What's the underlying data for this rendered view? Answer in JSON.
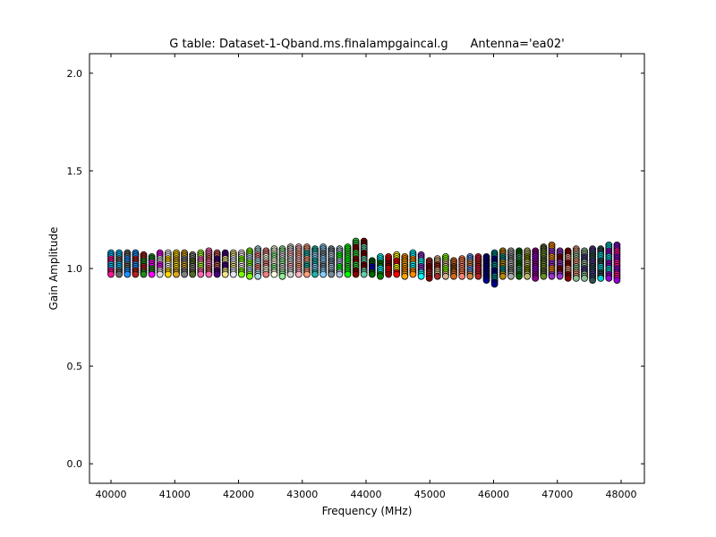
{
  "chart_data": {
    "type": "scatter",
    "title": "G table: Dataset-1-Qband.ms.finalampgaincal.g      Antenna='ea02'",
    "xlabel": "Frequency (MHz)",
    "ylabel": "Gain Amplitude",
    "xlim": [
      39663,
      48365
    ],
    "ylim": [
      -0.1,
      2.1
    ],
    "xticks": [
      "40000",
      "41000",
      "42000",
      "43000",
      "44000",
      "45000",
      "46000",
      "47000",
      "48000"
    ],
    "xtick_values": [
      40000,
      41000,
      42000,
      43000,
      44000,
      45000,
      46000,
      47000,
      48000
    ],
    "yticks": [
      "0.0",
      "0.5",
      "1.0",
      "1.5",
      "2.0"
    ],
    "ytick_values": [
      0.0,
      0.5,
      1.0,
      1.5,
      2.0
    ],
    "grid": false,
    "series_start_freq": 40000,
    "series_step_mhz": 128,
    "point_step": 0.01,
    "column_max": [
      1.08,
      1.08,
      1.08,
      1.08,
      1.07,
      1.06,
      1.08,
      1.08,
      1.08,
      1.08,
      1.07,
      1.08,
      1.09,
      1.08,
      1.08,
      1.08,
      1.08,
      1.09,
      1.1,
      1.09,
      1.1,
      1.1,
      1.11,
      1.11,
      1.11,
      1.1,
      1.11,
      1.1,
      1.1,
      1.11,
      1.14,
      1.14,
      1.04,
      1.06,
      1.06,
      1.07,
      1.06,
      1.08,
      1.07,
      1.04,
      1.05,
      1.06,
      1.04,
      1.05,
      1.06,
      1.06,
      1.06,
      1.08,
      1.09,
      1.09,
      1.09,
      1.09,
      1.09,
      1.11,
      1.12,
      1.09,
      1.09,
      1.1,
      1.09,
      1.1,
      1.1,
      1.12,
      1.12
    ],
    "column_min": [
      0.97,
      0.97,
      0.97,
      0.97,
      0.97,
      0.97,
      0.97,
      0.97,
      0.97,
      0.97,
      0.97,
      0.97,
      0.97,
      0.97,
      0.97,
      0.97,
      0.97,
      0.96,
      0.96,
      0.97,
      0.97,
      0.96,
      0.97,
      0.97,
      0.97,
      0.97,
      0.97,
      0.97,
      0.97,
      0.97,
      0.97,
      0.97,
      0.97,
      0.96,
      0.97,
      0.97,
      0.96,
      0.97,
      0.96,
      0.95,
      0.96,
      0.96,
      0.96,
      0.96,
      0.96,
      0.96,
      0.94,
      0.92,
      0.96,
      0.96,
      0.96,
      0.96,
      0.95,
      0.96,
      0.96,
      0.96,
      0.95,
      0.95,
      0.95,
      0.94,
      0.95,
      0.95,
      0.94
    ],
    "column_colors": [
      [
        "#00bfff",
        "#ff1493"
      ],
      [
        "#00bfff",
        "#696969"
      ],
      [
        "#696969",
        "#1e90ff"
      ],
      [
        "#1e90ff",
        "#b22222"
      ],
      [
        "#b22222",
        "#228b22"
      ],
      [
        "#228b22",
        "#ff00ff"
      ],
      [
        "#ff00ff",
        "#dcdcdc"
      ],
      [
        "#f8f8ff",
        "#ffd700"
      ],
      [
        "#ffd700",
        "#daa520"
      ],
      [
        "#daa520",
        "#808080"
      ],
      [
        "#808080",
        "#556b2f"
      ],
      [
        "#adff2f",
        "#ff69b4"
      ],
      [
        "#ff69b4",
        "#cd5c5c"
      ],
      [
        "#cd5c5c",
        "#4b0082"
      ],
      [
        "#4b0082",
        "#f0e68c"
      ],
      [
        "#f0e68c",
        "#e6e6fa"
      ],
      [
        "#fff0f5",
        "#7cfc00"
      ],
      [
        "#7cfc00",
        "#add8e6"
      ],
      [
        "#add8e6",
        "#f08080"
      ],
      [
        "#f08080",
        "#ffffe0"
      ],
      [
        "#ffffe0",
        "#90ee90"
      ],
      [
        "#90ee90",
        "#d3d3d3"
      ],
      [
        "#d3d3d3",
        "#ffb6c1"
      ],
      [
        "#ffb6c1",
        "#ffa07a"
      ],
      [
        "#ffa07a",
        "#20b2aa"
      ],
      [
        "#20b2aa",
        "#87cefa"
      ],
      [
        "#87cefa",
        "#778899"
      ],
      [
        "#778899",
        "#b0c4de"
      ],
      [
        "#b0c4de",
        "#00ff00"
      ],
      [
        "#00ff00",
        "#32cd32"
      ],
      [
        "#32cd32",
        "#8b0000"
      ],
      [
        "#800000",
        "#66cdaa"
      ],
      [
        "#006400",
        "#0000cd"
      ],
      [
        "#00ffff",
        "#008000"
      ],
      [
        "#ff0000",
        "#8b0000"
      ],
      [
        "#ffff00",
        "#ff0000"
      ],
      [
        "#ff8c00",
        "#ffa500"
      ],
      [
        "#00ffff",
        "#ff8c00"
      ],
      [
        "#9932cc",
        "#00ffff"
      ],
      [
        "#a52a2a",
        "#800000"
      ],
      [
        "#deb887",
        "#a52a2a"
      ],
      [
        "#7fff00",
        "#d2b48c"
      ],
      [
        "#d2691e",
        "#8b4513"
      ],
      [
        "#ff7f50",
        "#fa8072"
      ],
      [
        "#6495ed",
        "#cd853f"
      ],
      [
        "#dc143c",
        "#b22222"
      ],
      [
        "#00008b",
        "#000080"
      ],
      [
        "#008b8b",
        "#00008b"
      ],
      [
        "#b8860b",
        "#008b8b"
      ],
      [
        "#a9a9a9",
        "#808080"
      ],
      [
        "#006400",
        "#2e8b57"
      ],
      [
        "#bdb76b",
        "#808000"
      ],
      [
        "#8b008b",
        "#9400d3"
      ],
      [
        "#556b2f",
        "#6b8e23"
      ],
      [
        "#ff8c00",
        "#9932cc"
      ],
      [
        "#9932cc",
        "#800000"
      ],
      [
        "#8b0000",
        "#e9967a"
      ],
      [
        "#e9967a",
        "#8fbc8f"
      ],
      [
        "#8fbc8f",
        "#483d8b"
      ],
      [
        "#483d8b",
        "#2f4f4f"
      ],
      [
        "#2f4f4f",
        "#00ced1"
      ],
      [
        "#00ced1",
        "#9400d3"
      ],
      [
        "#9400d3",
        "#ff1493"
      ]
    ]
  }
}
